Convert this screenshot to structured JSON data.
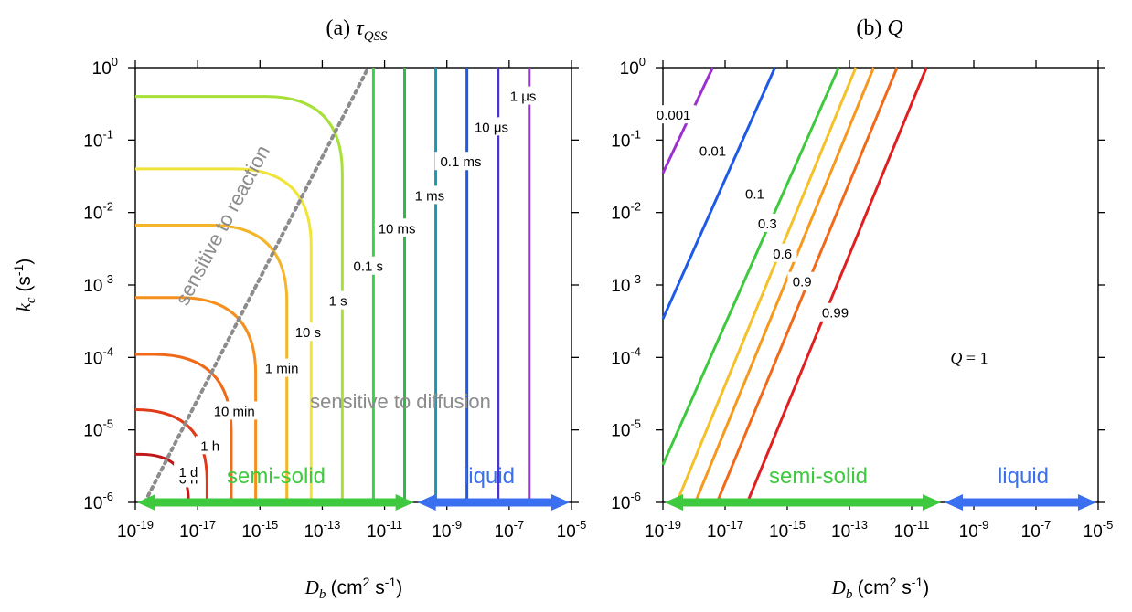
{
  "chart_data": [
    {
      "type": "line",
      "subtype": "contour",
      "panel": "a",
      "title_prefix": "(a)",
      "title_symbol": "τ",
      "title_sub": "QSS",
      "xlabel_symbol": "D",
      "xlabel_sub": "b",
      "xlabel_unit_a": "(cm",
      "xlabel_unit_exp": "2",
      "xlabel_unit_b": " s",
      "xlabel_unit_exp2": "-1",
      "xlabel_unit_c": ")",
      "ylabel_symbol": "k",
      "ylabel_sub": "c",
      "ylabel_unit_a": " (s",
      "ylabel_unit_exp": "-1",
      "ylabel_unit_c": ")",
      "x_scale": "log",
      "y_scale": "log",
      "xlim": [
        1e-19,
        1e-05
      ],
      "ylim": [
        1e-06,
        1
      ],
      "x_ticks": [
        {
          "base": "10",
          "exp": "-19",
          "value": 1e-19
        },
        {
          "base": "10",
          "exp": "-17",
          "value": 1e-17
        },
        {
          "base": "10",
          "exp": "-15",
          "value": 1e-15
        },
        {
          "base": "10",
          "exp": "-13",
          "value": 1e-13
        },
        {
          "base": "10",
          "exp": "-11",
          "value": 1e-11
        },
        {
          "base": "10",
          "exp": "-9",
          "value": 1e-09
        },
        {
          "base": "10",
          "exp": "-7",
          "value": 1e-07
        },
        {
          "base": "10",
          "exp": "-5",
          "value": 1e-05
        }
      ],
      "y_ticks": [
        {
          "base": "10",
          "exp": "0",
          "value": 1
        },
        {
          "base": "10",
          "exp": "-1",
          "value": 0.1
        },
        {
          "base": "10",
          "exp": "-2",
          "value": 0.01
        },
        {
          "base": "10",
          "exp": "-3",
          "value": 0.001
        },
        {
          "base": "10",
          "exp": "-4",
          "value": 0.0001
        },
        {
          "base": "10",
          "exp": "-5",
          "value": 1e-05
        },
        {
          "base": "10",
          "exp": "-6",
          "value": 1e-06
        }
      ],
      "contours": [
        {
          "label": "1 μs",
          "color": "#9b30d0",
          "x_vertical": 4.4e-07,
          "label_at": [
            2.8e-07,
            0.4
          ]
        },
        {
          "label": "10 μs",
          "color": "#4b32d6",
          "x_vertical": 4.4e-08,
          "label_at": [
            2.7e-08,
            0.15
          ]
        },
        {
          "label": "0.1 ms",
          "color": "#1f5ae6",
          "x_vertical": 4.4e-09,
          "label_at": [
            2.8e-09,
            0.05
          ]
        },
        {
          "label": "1 ms",
          "color": "#1a9ab0",
          "x_vertical": 4.4e-10,
          "label_at": [
            2.8e-10,
            0.017
          ]
        },
        {
          "label": "10 ms",
          "color": "#2fb84b",
          "x_vertical": 4.4e-11,
          "label_at": [
            2.5e-11,
            0.006
          ]
        },
        {
          "label": "0.1 s",
          "color": "#3fd04a",
          "x_vertical": 4.4e-12,
          "label_at": [
            3e-12,
            0.0018
          ]
        },
        {
          "label": "1 s",
          "color": "#a8e03a",
          "k_plateau": 0.4,
          "x_vertical": 4.4e-13,
          "label_at": [
            3.2e-13,
            0.0006
          ]
        },
        {
          "label": "10 s",
          "color": "#f0e43a",
          "k_plateau": 0.04,
          "x_vertical": 4.4e-14,
          "label_at": [
            3.5e-14,
            0.00022
          ]
        },
        {
          "label": "1 min",
          "color": "#f5b52a",
          "k_plateau": 0.0067,
          "x_vertical": 7.3e-15,
          "label_at": [
            5e-15,
            7e-05
          ]
        },
        {
          "label": "10 min",
          "color": "#f58f1e",
          "k_plateau": 0.00067,
          "x_vertical": 7.3e-16,
          "label_at": [
            1.5e-16,
            1.8e-05
          ]
        },
        {
          "label": "1 h",
          "color": "#f06a1a",
          "k_plateau": 0.00011,
          "x_vertical": 1.2e-16,
          "label_at": [
            2.5e-17,
            6e-06
          ]
        },
        {
          "label": "6 h",
          "color": "#e03a18",
          "k_plateau": 1.9e-05,
          "x_vertical": 2e-17,
          "label_at": [
            5e-18,
            2.1e-06
          ]
        },
        {
          "label": "1 d",
          "color": "#c01818",
          "k_plateau": 4.6e-06,
          "x_vertical": 5.1e-18,
          "label_at": [
            5e-18,
            2.6e-06
          ]
        }
      ],
      "boundary": {
        "color": "#8c8c8c",
        "style": "dotted",
        "from": [
          2e-19,
          1e-06
        ],
        "to": [
          3e-12,
          1
        ]
      },
      "annotations": [
        {
          "text": "sensitive to reaction",
          "color": "#8c8c8c"
        },
        {
          "text": "sensitive to diffusion",
          "color": "#8c8c8c"
        }
      ],
      "regimes": [
        {
          "text": "semi-solid",
          "color": "#3ec93e",
          "from": 1e-19,
          "to": 1e-10
        },
        {
          "text": "liquid",
          "color": "#3a6ff0",
          "from": 1e-10,
          "to": 1e-05
        }
      ]
    },
    {
      "type": "line",
      "subtype": "contour",
      "panel": "b",
      "title_prefix": "(b)",
      "title_symbol": "Q",
      "xlabel_symbol": "D",
      "xlabel_sub": "b",
      "xlabel_unit_a": "(cm",
      "xlabel_unit_exp": "2",
      "xlabel_unit_b": " s",
      "xlabel_unit_exp2": "-1",
      "xlabel_unit_c": ")",
      "x_scale": "log",
      "y_scale": "log",
      "xlim": [
        1e-19,
        1e-05
      ],
      "ylim": [
        1e-06,
        1
      ],
      "x_ticks": [
        {
          "base": "10",
          "exp": "-19",
          "value": 1e-19
        },
        {
          "base": "10",
          "exp": "-17",
          "value": 1e-17
        },
        {
          "base": "10",
          "exp": "-15",
          "value": 1e-15
        },
        {
          "base": "10",
          "exp": "-13",
          "value": 1e-13
        },
        {
          "base": "10",
          "exp": "-11",
          "value": 1e-11
        },
        {
          "base": "10",
          "exp": "-9",
          "value": 1e-09
        },
        {
          "base": "10",
          "exp": "-7",
          "value": 1e-07
        },
        {
          "base": "10",
          "exp": "-5",
          "value": 1e-05
        }
      ],
      "y_ticks": [
        {
          "base": "10",
          "exp": "0",
          "value": 1
        },
        {
          "base": "10",
          "exp": "-1",
          "value": 0.1
        },
        {
          "base": "10",
          "exp": "-2",
          "value": 0.01
        },
        {
          "base": "10",
          "exp": "-3",
          "value": 0.001
        },
        {
          "base": "10",
          "exp": "-4",
          "value": 0.0001
        },
        {
          "base": "10",
          "exp": "-5",
          "value": 1e-05
        },
        {
          "base": "10",
          "exp": "-6",
          "value": 1e-06
        }
      ],
      "contours": [
        {
          "label": "0.001",
          "color": "#9b30d0",
          "line": [
            [
              1e-19,
              0.035
            ],
            [
              4e-18,
              1
            ]
          ],
          "label_at": [
            2.2e-19,
            0.22
          ]
        },
        {
          "label": "0.01",
          "color": "#1f5ae6",
          "line": [
            [
              1e-19,
              0.00034
            ],
            [
              4e-16,
              1
            ]
          ],
          "label_at": [
            4e-18,
            0.07
          ]
        },
        {
          "label": "0.1",
          "color": "#3ec93e",
          "line": [
            [
              1e-19,
              3.3e-06
            ],
            [
              4.5e-14,
              1
            ]
          ],
          "label_at": [
            9e-17,
            0.018
          ]
        },
        {
          "label": "0.3",
          "color": "#f5c12a",
          "line": [
            [
              2.8e-19,
              1e-06
            ],
            [
              1.6e-13,
              1
            ]
          ],
          "label_at": [
            2.3e-16,
            0.007
          ]
        },
        {
          "label": "0.6",
          "color": "#f59a1e",
          "line": [
            [
              1.1e-18,
              1e-06
            ],
            [
              6e-13,
              1
            ]
          ],
          "label_at": [
            7e-16,
            0.0027
          ]
        },
        {
          "label": "0.9",
          "color": "#f06a1a",
          "line": [
            [
              5.5e-18,
              1e-06
            ],
            [
              3.4e-12,
              1
            ]
          ],
          "label_at": [
            3e-15,
            0.0011
          ]
        },
        {
          "label": "0.99",
          "color": "#e02020",
          "line": [
            [
              5.2e-17,
              1e-06
            ],
            [
              3e-11,
              1
            ]
          ],
          "label_at": [
            3.5e-14,
            0.00041
          ]
        }
      ],
      "note_symbol": "Q",
      "note_text": " = 1",
      "regimes": [
        {
          "text": "semi-solid",
          "color": "#3ec93e",
          "from": 1e-19,
          "to": 1e-10
        },
        {
          "text": "liquid",
          "color": "#3a6ff0",
          "from": 1e-10,
          "to": 1e-05
        }
      ]
    }
  ]
}
